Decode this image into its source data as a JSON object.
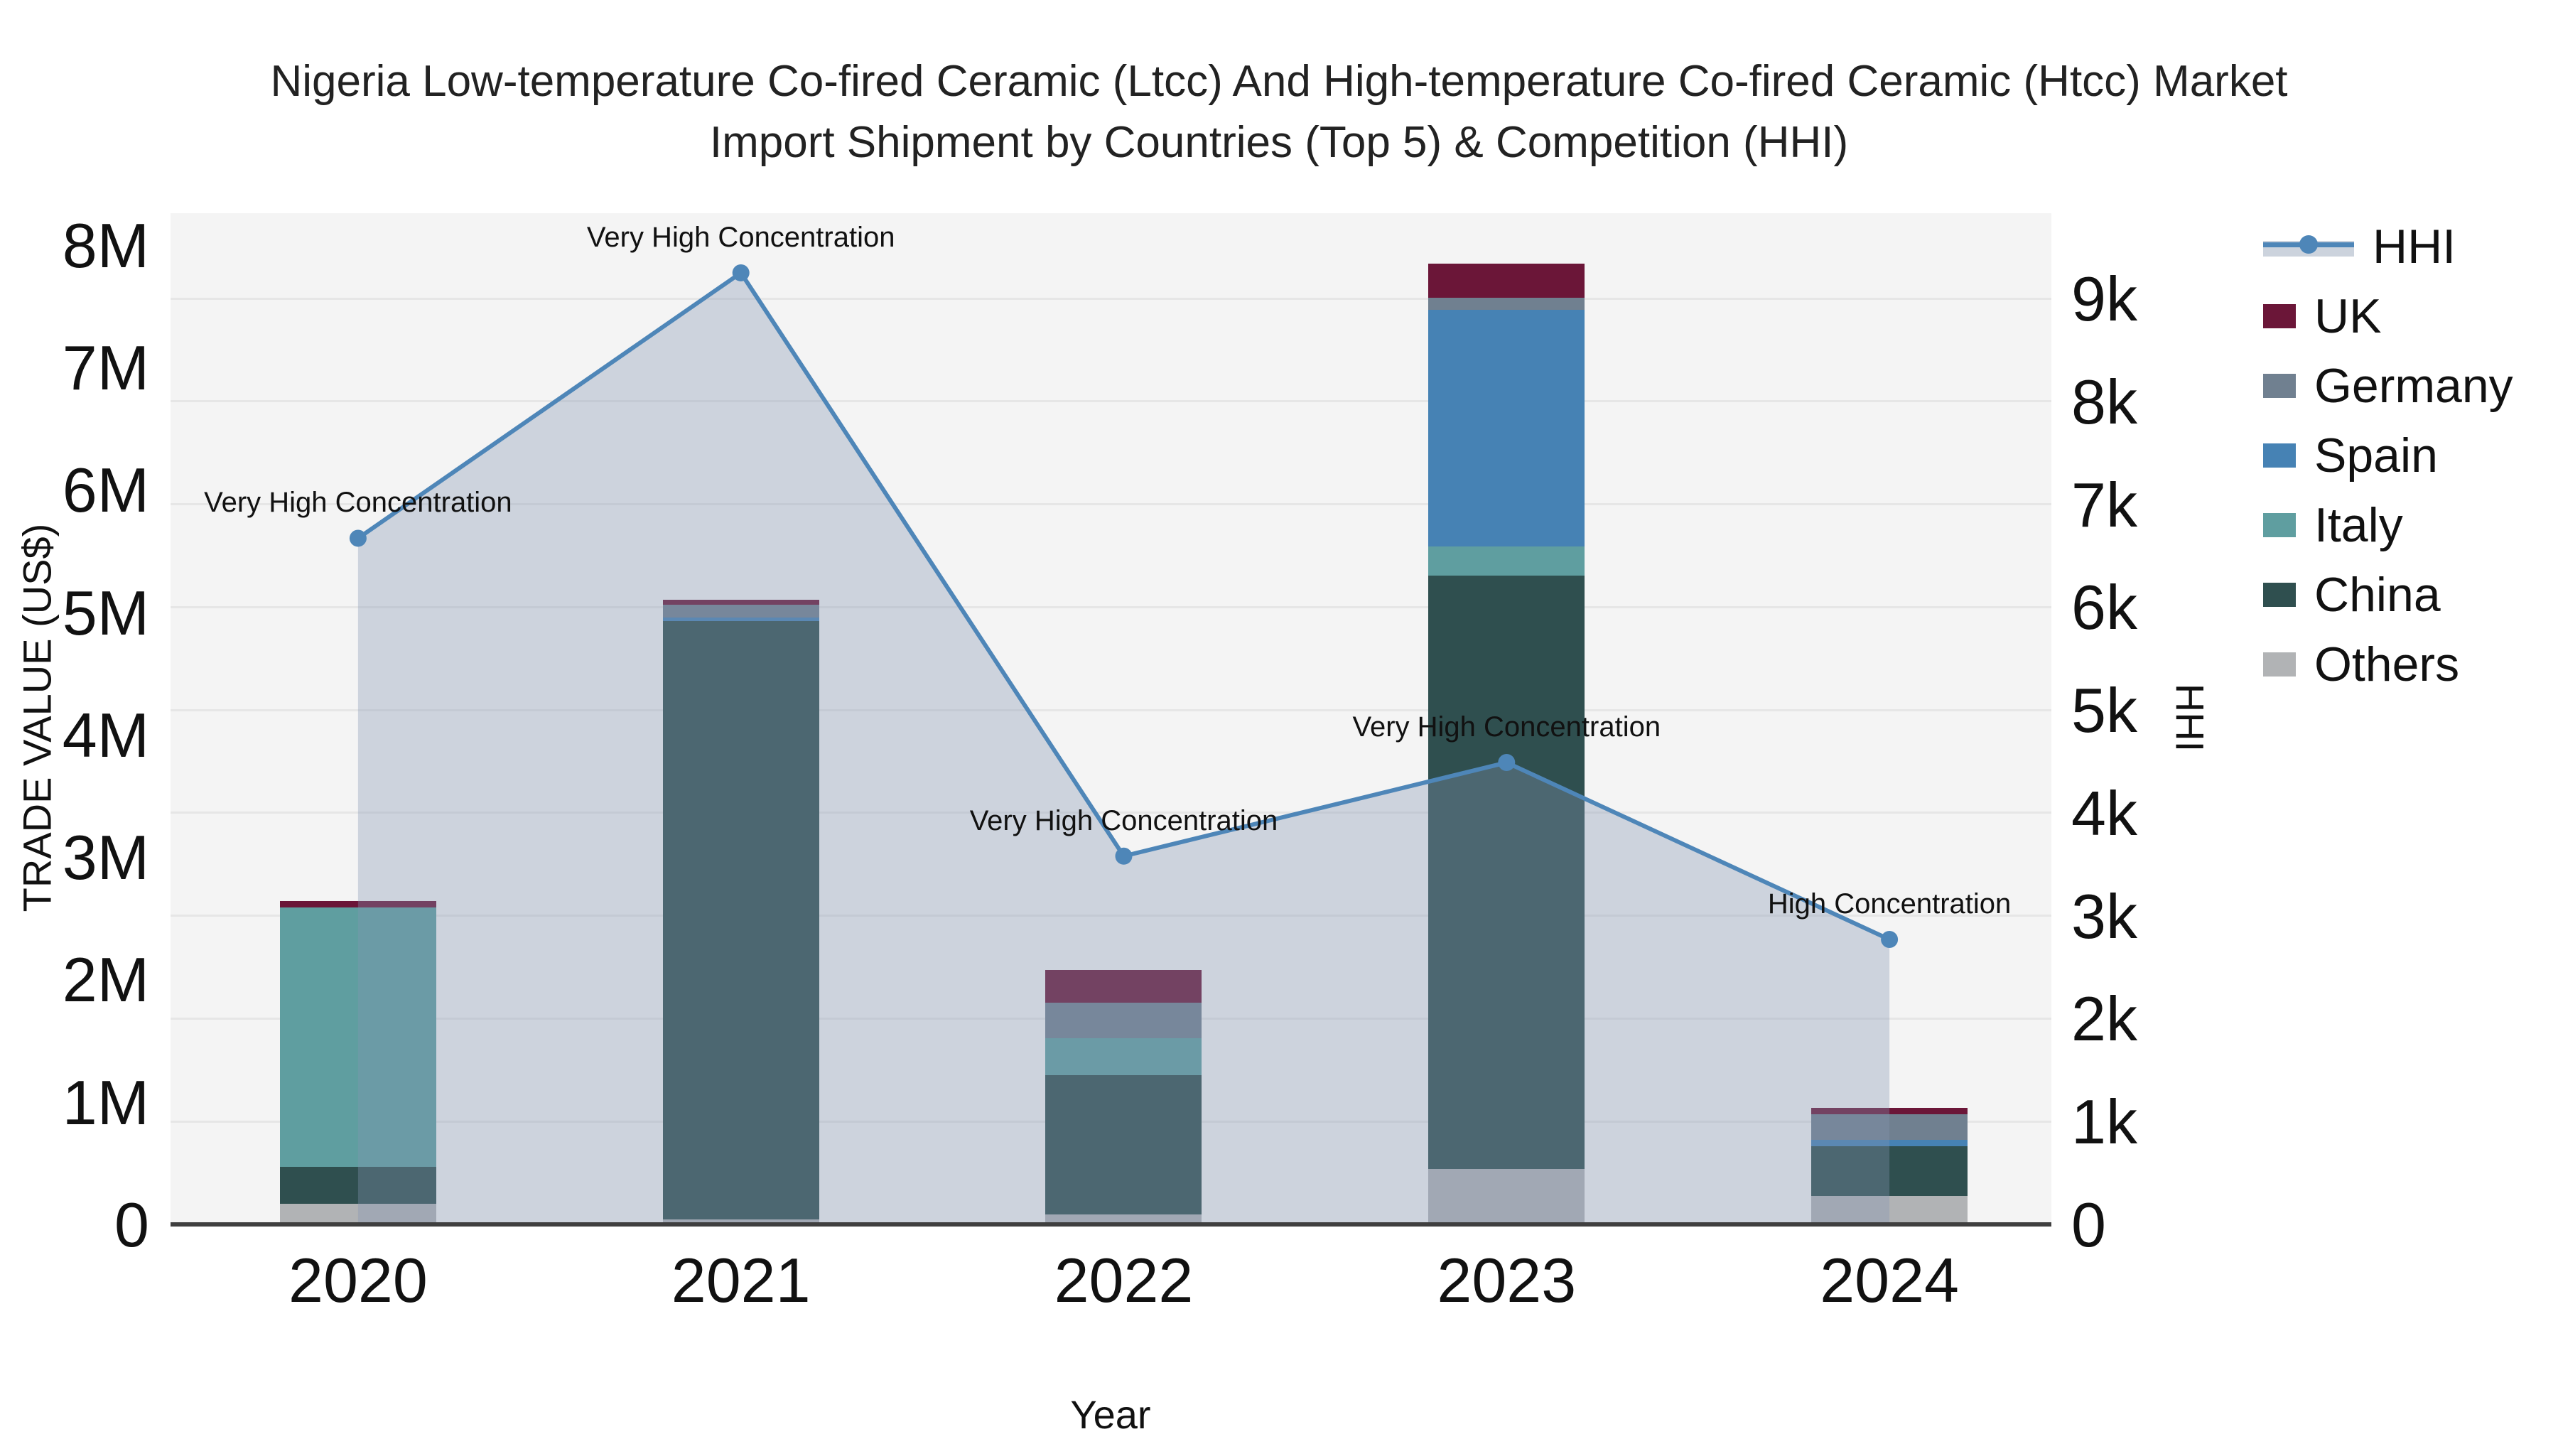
{
  "title": {
    "line1": "Nigeria Low-temperature Co-fired Ceramic (Ltcc) And High-temperature Co-fired Ceramic (Htcc) Market",
    "line2": "Import Shipment by Countries (Top 5) & Competition (HHI)"
  },
  "axes": {
    "left_title": "TRADE VALUE (US$)",
    "bottom_title": "Year",
    "right_title": "HHI"
  },
  "legend": {
    "items": [
      {
        "label": "HHI",
        "type": "line",
        "color": "#4e86b8"
      },
      {
        "label": "UK",
        "type": "box",
        "color": "#6b1638"
      },
      {
        "label": "Germany",
        "type": "box",
        "color": "#708090"
      },
      {
        "label": "Spain",
        "type": "box",
        "color": "#4682b4"
      },
      {
        "label": "Italy",
        "type": "box",
        "color": "#5f9ea0"
      },
      {
        "label": "China",
        "type": "box",
        "color": "#2f4f4f"
      },
      {
        "label": "Others",
        "type": "box",
        "color": "#b1b3b5"
      }
    ]
  },
  "chart_data": {
    "type": "bar",
    "subtype": "stacked-bar-with-line",
    "categories": [
      "2020",
      "2021",
      "2022",
      "2023",
      "2024"
    ],
    "bar_value_unit": "US$",
    "series": [
      {
        "name": "Others",
        "color": "#b1b3b5",
        "values": [
          170000,
          40000,
          80000,
          450000,
          230000
        ]
      },
      {
        "name": "China",
        "color": "#2f4f4f",
        "values": [
          300000,
          4890000,
          1140000,
          4850000,
          410000
        ]
      },
      {
        "name": "Italy",
        "color": "#5f9ea0",
        "values": [
          2120000,
          0,
          300000,
          240000,
          0
        ]
      },
      {
        "name": "Spain",
        "color": "#4682b4",
        "values": [
          0,
          30000,
          0,
          1930000,
          50000
        ]
      },
      {
        "name": "Germany",
        "color": "#708090",
        "values": [
          0,
          100000,
          290000,
          100000,
          210000
        ]
      },
      {
        "name": "UK",
        "color": "#6b1638",
        "values": [
          50000,
          40000,
          270000,
          280000,
          50000
        ]
      }
    ],
    "line_series": {
      "name": "HHI",
      "color": "#4e86b8",
      "area_fill": "rgba(132,150,178,0.35)",
      "values": [
        6670,
        9250,
        3580,
        4490,
        2770
      ]
    },
    "annotations": [
      "Very High Concentration",
      "Very High Concentration",
      "Very High Concentration",
      "Very High Concentration",
      "High Concentration"
    ],
    "left_axis": {
      "label": "TRADE VALUE (US$)",
      "tick_labels": [
        "0",
        "1M",
        "2M",
        "3M",
        "4M",
        "5M",
        "6M",
        "7M",
        "8M"
      ],
      "tick_values": [
        0,
        1000000,
        2000000,
        3000000,
        4000000,
        5000000,
        6000000,
        7000000,
        8000000
      ],
      "range": [
        0,
        8260000
      ]
    },
    "right_axis": {
      "label": "HHI",
      "tick_labels": [
        "0",
        "1k",
        "2k",
        "3k",
        "4k",
        "5k",
        "6k",
        "7k",
        "8k",
        "9k"
      ],
      "tick_values": [
        0,
        1000,
        2000,
        3000,
        4000,
        5000,
        6000,
        7000,
        8000,
        9000
      ],
      "range": [
        0,
        9830
      ]
    },
    "xlabel": "Year",
    "grid": "horizontal-right-axis"
  }
}
